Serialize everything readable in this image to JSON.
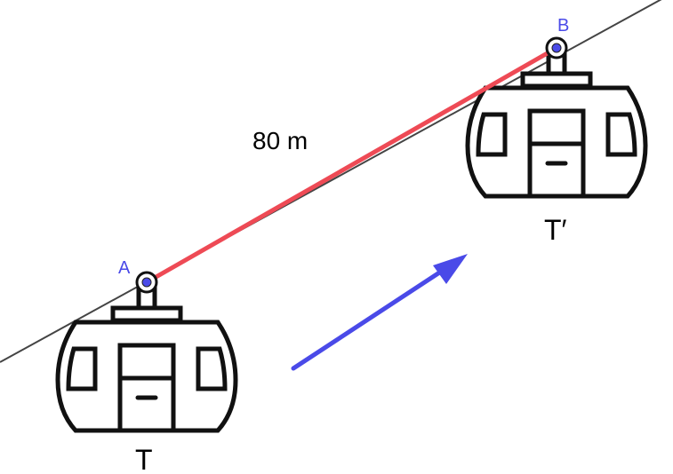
{
  "labels": {
    "point_a": "A",
    "point_b": "B",
    "distance": "80 m",
    "cabin_original": "T",
    "cabin_image": "T′"
  },
  "colors": {
    "cable": "#444444",
    "segment": "#ee4a55",
    "vector": "#4a4ae8",
    "point_label": "#4a4ae8",
    "point_fill": "#4a4ae8",
    "cabin_stroke": "#111111"
  },
  "icons": {
    "cabin": "cable-car-icon"
  }
}
